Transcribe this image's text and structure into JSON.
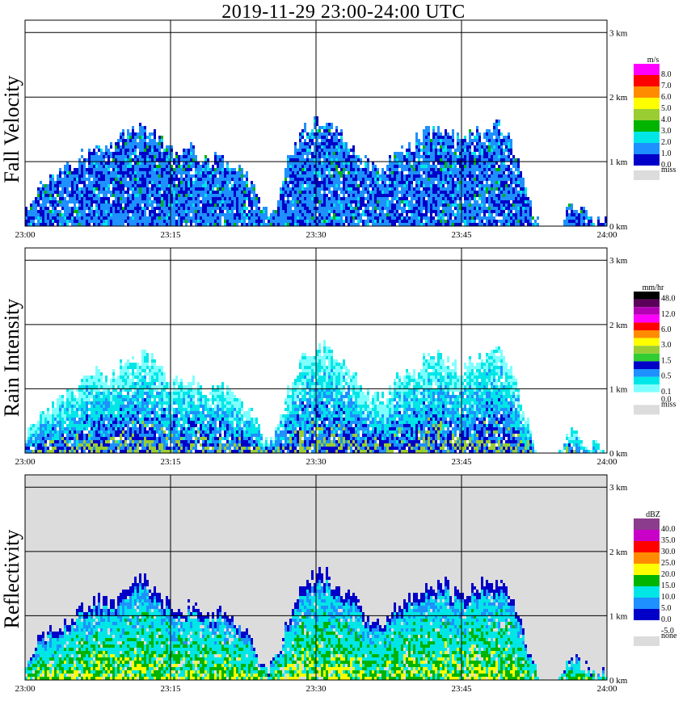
{
  "title": "2019-11-29   23:00-24:00 UTC",
  "chart_data": [
    {
      "type": "heatmap",
      "panel_label": "Fall Velocity",
      "unit": "m/s",
      "x_ticks": [
        "23:00",
        "23:15",
        "23:30",
        "23:45",
        "24:00"
      ],
      "x_range_minutes": [
        0,
        60
      ],
      "y_ticks": [
        "0 km",
        "1 km",
        "2 km",
        "3 km"
      ],
      "y_range_km": [
        0,
        3.0
      ],
      "legend": [
        {
          "label": "8.0",
          "color": "#ff00ff"
        },
        {
          "label": "7.0",
          "color": "#ff0000"
        },
        {
          "label": "6.0",
          "color": "#ff8c00"
        },
        {
          "label": "5.0",
          "color": "#ffff00"
        },
        {
          "label": "4.0",
          "color": "#9acd32"
        },
        {
          "label": "3.0",
          "color": "#00b400"
        },
        {
          "label": "2.0",
          "color": "#00e6e6"
        },
        {
          "label": "1.0",
          "color": "#1e90ff"
        },
        {
          "label": "0.0",
          "color": "#0000c8"
        }
      ],
      "missing_label": "miss",
      "missing_color": "#dcdcdc",
      "cloud_top_km": [
        0.3,
        0.55,
        0.7,
        0.8,
        0.95,
        1.0,
        1.15,
        1.3,
        1.25,
        1.2,
        1.45,
        1.5,
        1.6,
        1.45,
        1.3,
        1.15,
        1.1,
        1.2,
        1.05,
        1.0,
        1.1,
        0.95,
        0.9,
        0.7,
        0.4,
        0.2,
        0.45,
        1.0,
        1.35,
        1.55,
        1.65,
        1.65,
        1.5,
        1.4,
        1.2,
        1.0,
        0.9,
        0.95,
        1.15,
        1.25,
        1.3,
        1.45,
        1.5,
        1.55,
        1.4,
        1.3,
        1.45,
        1.5,
        1.55,
        1.6,
        1.3,
        0.9,
        0.35,
        0.0,
        0.0,
        0.0,
        0.35,
        0.3,
        0.2,
        0.15
      ],
      "palette": [
        "#0000c8",
        "#1e90ff",
        "#00e6e6",
        "#00b400",
        "#ff00ff"
      ],
      "background": "#ffffff"
    },
    {
      "type": "heatmap",
      "panel_label": "Rain Intensity",
      "unit": "mm/hr",
      "x_ticks": [
        "23:00",
        "23:15",
        "23:30",
        "23:45",
        "24:00"
      ],
      "x_range_minutes": [
        0,
        60
      ],
      "y_ticks": [
        "0 km",
        "1 km",
        "2 km",
        "3 km"
      ],
      "y_range_km": [
        0,
        3.0
      ],
      "legend": [
        {
          "label": "48.0",
          "color": "#000000"
        },
        {
          "label": "",
          "color": "#5a005a"
        },
        {
          "label": "12.0",
          "color": "#b400b4"
        },
        {
          "label": "",
          "color": "#ff00ff"
        },
        {
          "label": "6.0",
          "color": "#ff0000"
        },
        {
          "label": "",
          "color": "#ff8c00"
        },
        {
          "label": "3.0",
          "color": "#ffff00"
        },
        {
          "label": "",
          "color": "#9acd32"
        },
        {
          "label": "1.5",
          "color": "#32cd32"
        },
        {
          "label": "",
          "color": "#0000c8"
        },
        {
          "label": "0.5",
          "color": "#1e90ff"
        },
        {
          "label": "",
          "color": "#00e6e6"
        },
        {
          "label": "0.1",
          "color": "#7fffff"
        },
        {
          "label": "0.0",
          "color": "#ffffff"
        }
      ],
      "missing_label": "miss",
      "missing_color": "#dcdcdc",
      "cloud_top_km": [
        0.3,
        0.55,
        0.7,
        0.8,
        0.95,
        1.0,
        1.15,
        1.3,
        1.25,
        1.2,
        1.45,
        1.5,
        1.6,
        1.45,
        1.3,
        1.15,
        1.1,
        1.2,
        1.05,
        1.0,
        1.1,
        0.95,
        0.9,
        0.7,
        0.4,
        0.2,
        0.45,
        1.0,
        1.35,
        1.55,
        1.65,
        1.65,
        1.5,
        1.4,
        1.2,
        1.0,
        0.9,
        0.95,
        1.15,
        1.25,
        1.3,
        1.45,
        1.5,
        1.55,
        1.4,
        1.3,
        1.45,
        1.5,
        1.55,
        1.6,
        1.3,
        0.9,
        0.35,
        0.0,
        0.0,
        0.0,
        0.35,
        0.3,
        0.2,
        0.15
      ],
      "palette": [
        "#7fffff",
        "#00e6e6",
        "#1e90ff",
        "#0000c8",
        "#9acd32"
      ],
      "background": "#ffffff"
    },
    {
      "type": "heatmap",
      "panel_label": "Reflectivity",
      "unit": "dBZ",
      "x_ticks": [
        "23:00",
        "23:15",
        "23:30",
        "23:45",
        "24:00"
      ],
      "x_range_minutes": [
        0,
        60
      ],
      "y_ticks": [
        "0 km",
        "1 km",
        "2 km",
        "3 km"
      ],
      "y_range_km": [
        0,
        3.0
      ],
      "legend": [
        {
          "label": "40.0",
          "color": "#8c3c8c"
        },
        {
          "label": "35.0",
          "color": "#c800c8"
        },
        {
          "label": "30.0",
          "color": "#ff0000"
        },
        {
          "label": "25.0",
          "color": "#ff8c00"
        },
        {
          "label": "20.0",
          "color": "#ffff00"
        },
        {
          "label": "15.0",
          "color": "#00b400"
        },
        {
          "label": "10.0",
          "color": "#00e6e6"
        },
        {
          "label": "5.0",
          "color": "#1e90ff"
        },
        {
          "label": "0.0",
          "color": "#0000c8"
        },
        {
          "label": "-5.0",
          "color": "#ffffff"
        }
      ],
      "missing_label": "none",
      "missing_color": "#dcdcdc",
      "cloud_top_km": [
        0.3,
        0.55,
        0.7,
        0.8,
        0.95,
        1.0,
        1.15,
        1.3,
        1.25,
        1.2,
        1.45,
        1.5,
        1.6,
        1.45,
        1.3,
        1.15,
        1.1,
        1.2,
        1.05,
        1.0,
        1.1,
        0.95,
        0.9,
        0.7,
        0.4,
        0.2,
        0.45,
        1.0,
        1.35,
        1.55,
        1.65,
        1.65,
        1.5,
        1.4,
        1.2,
        1.0,
        0.9,
        0.95,
        1.15,
        1.25,
        1.3,
        1.45,
        1.5,
        1.55,
        1.4,
        1.3,
        1.45,
        1.5,
        1.55,
        1.6,
        1.3,
        0.9,
        0.35,
        0.0,
        0.0,
        0.0,
        0.35,
        0.3,
        0.2,
        0.15
      ],
      "palette": [
        "#0000c8",
        "#1e90ff",
        "#00e6e6",
        "#00b400",
        "#ffff00"
      ],
      "background": "#dcdcdc"
    }
  ]
}
